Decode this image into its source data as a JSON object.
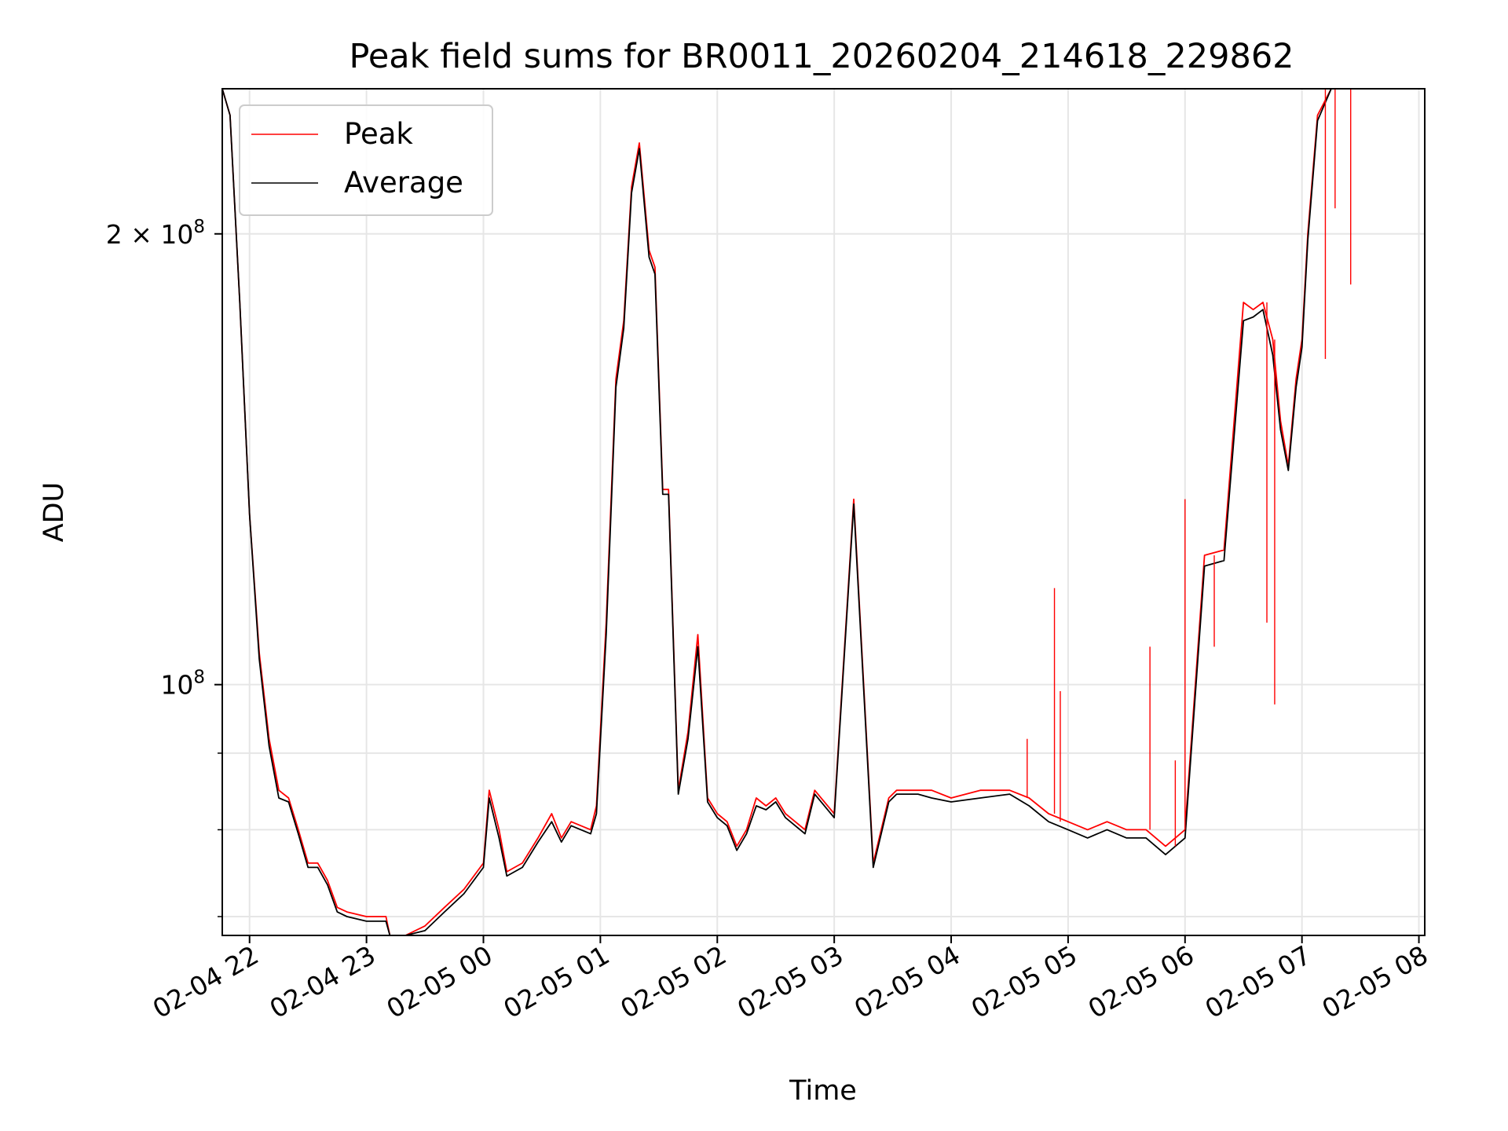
{
  "chart_data": {
    "type": "line",
    "title": "Peak field sums for BR0011_20260204_214618_229862",
    "xlabel": "Time",
    "ylabel": "ADU",
    "yscale": "log",
    "grid": true,
    "legend_position": "top-left",
    "xlim": [
      "02-04 21:46",
      "02-05 08:03"
    ],
    "ylim": [
      68000000,
      250000000
    ],
    "x_ticks": [
      "02-04 22",
      "02-04 23",
      "02-05 00",
      "02-05 01",
      "02-05 02",
      "02-05 03",
      "02-05 04",
      "02-05 05",
      "02-05 06",
      "02-05 07",
      "02-05 08"
    ],
    "y_ticks": [
      {
        "value": 100000000,
        "base": "10",
        "exp": "8",
        "coef": ""
      },
      {
        "value": 200000000,
        "base": "10",
        "exp": "8",
        "coef": "2 × "
      }
    ],
    "series": [
      {
        "name": "Peak",
        "color": "#ff0000",
        "x": [
          "02-04 21:46",
          "02-04 21:50",
          "02-04 21:55",
          "02-04 22:00",
          "02-04 22:05",
          "02-04 22:10",
          "02-04 22:15",
          "02-04 22:20",
          "02-04 22:25",
          "02-04 22:30",
          "02-04 22:35",
          "02-04 22:40",
          "02-04 22:45",
          "02-04 22:50",
          "02-04 23:00",
          "02-04 23:10",
          "02-04 23:12",
          "02-04 23:20",
          "02-04 23:30",
          "02-04 23:40",
          "02-04 23:50",
          "02-05 00:00",
          "02-05 00:03",
          "02-05 00:08",
          "02-05 00:12",
          "02-05 00:20",
          "02-05 00:28",
          "02-05 00:35",
          "02-05 00:40",
          "02-05 00:45",
          "02-05 00:55",
          "02-05 00:58",
          "02-05 01:03",
          "02-05 01:08",
          "02-05 01:12",
          "02-05 01:16",
          "02-05 01:20",
          "02-05 01:25",
          "02-05 01:28",
          "02-05 01:32",
          "02-05 01:35",
          "02-05 01:40",
          "02-05 01:45",
          "02-05 01:50",
          "02-05 01:55",
          "02-05 02:00",
          "02-05 02:05",
          "02-05 02:10",
          "02-05 02:15",
          "02-05 02:20",
          "02-05 02:25",
          "02-05 02:30",
          "02-05 02:35",
          "02-05 02:40",
          "02-05 02:45",
          "02-05 02:50",
          "02-05 03:00",
          "02-05 03:10",
          "02-05 03:20",
          "02-05 03:28",
          "02-05 03:32",
          "02-05 03:38",
          "02-05 03:43",
          "02-05 03:50",
          "02-05 04:00",
          "02-05 04:15",
          "02-05 04:30",
          "02-05 04:40",
          "02-05 04:50",
          "02-05 05:00",
          "02-05 05:10",
          "02-05 05:20",
          "02-05 05:30",
          "02-05 05:40",
          "02-05 05:50",
          "02-05 06:00",
          "02-05 06:10",
          "02-05 06:20",
          "02-05 06:30",
          "02-05 06:35",
          "02-05 06:40",
          "02-05 06:45",
          "02-05 06:49",
          "02-05 06:53",
          "02-05 06:57",
          "02-05 07:00",
          "02-05 07:03",
          "02-05 07:08",
          "02-05 07:15",
          "02-05 07:22",
          "02-05 07:30",
          "02-05 07:35",
          "02-05 07:40",
          "02-05 07:45",
          "02-05 07:50",
          "02-05 07:55",
          "02-05 08:00",
          "02-05 08:03"
        ],
        "values": [
          250000000,
          240000000,
          180000000,
          130000000,
          105000000,
          92000000,
          85000000,
          84000000,
          80000000,
          76000000,
          76000000,
          74000000,
          71000000,
          70500000,
          70000000,
          70000000,
          68000000,
          68000000,
          69000000,
          71000000,
          73000000,
          76000000,
          85000000,
          80000000,
          75000000,
          76000000,
          79000000,
          82000000,
          79000000,
          81000000,
          80000000,
          83000000,
          110000000,
          160000000,
          175000000,
          215000000,
          230000000,
          195000000,
          190000000,
          135000000,
          135000000,
          85000000,
          93000000,
          108000000,
          84000000,
          82000000,
          81000000,
          78000000,
          80000000,
          84000000,
          83000000,
          84000000,
          82000000,
          81000000,
          80000000,
          85000000,
          82000000,
          133000000,
          76000000,
          84000000,
          85000000,
          85000000,
          85000000,
          85000000,
          84000000,
          85000000,
          85000000,
          84000000,
          82000000,
          81000000,
          80000000,
          81000000,
          80000000,
          80000000,
          78000000,
          80000000,
          122000000,
          123000000,
          180000000,
          178000000,
          180000000,
          170000000,
          150000000,
          140000000,
          160000000,
          170000000,
          200000000,
          240000000,
          250000000,
          250000000,
          250000000,
          250000000,
          250000000,
          250000000,
          250000000,
          250000000,
          250000000,
          250000000
        ]
      },
      {
        "name": "Average",
        "color": "#000000",
        "x": [
          "02-04 21:46",
          "02-04 21:50",
          "02-04 21:55",
          "02-04 22:00",
          "02-04 22:05",
          "02-04 22:10",
          "02-04 22:15",
          "02-04 22:20",
          "02-04 22:25",
          "02-04 22:30",
          "02-04 22:35",
          "02-04 22:40",
          "02-04 22:45",
          "02-04 22:50",
          "02-04 23:00",
          "02-04 23:10",
          "02-04 23:12",
          "02-04 23:20",
          "02-04 23:30",
          "02-04 23:40",
          "02-04 23:50",
          "02-05 00:00",
          "02-05 00:03",
          "02-05 00:08",
          "02-05 00:12",
          "02-05 00:20",
          "02-05 00:28",
          "02-05 00:35",
          "02-05 00:40",
          "02-05 00:45",
          "02-05 00:55",
          "02-05 00:58",
          "02-05 01:03",
          "02-05 01:08",
          "02-05 01:12",
          "02-05 01:16",
          "02-05 01:20",
          "02-05 01:25",
          "02-05 01:28",
          "02-05 01:32",
          "02-05 01:35",
          "02-05 01:40",
          "02-05 01:45",
          "02-05 01:50",
          "02-05 01:55",
          "02-05 02:00",
          "02-05 02:05",
          "02-05 02:10",
          "02-05 02:15",
          "02-05 02:20",
          "02-05 02:25",
          "02-05 02:30",
          "02-05 02:35",
          "02-05 02:40",
          "02-05 02:45",
          "02-05 02:50",
          "02-05 03:00",
          "02-05 03:10",
          "02-05 03:20",
          "02-05 03:28",
          "02-05 03:32",
          "02-05 03:38",
          "02-05 03:43",
          "02-05 03:50",
          "02-05 04:00",
          "02-05 04:15",
          "02-05 04:30",
          "02-05 04:40",
          "02-05 04:50",
          "02-05 05:00",
          "02-05 05:10",
          "02-05 05:20",
          "02-05 05:30",
          "02-05 05:40",
          "02-05 05:50",
          "02-05 06:00",
          "02-05 06:10",
          "02-05 06:20",
          "02-05 06:30",
          "02-05 06:35",
          "02-05 06:40",
          "02-05 06:45",
          "02-05 06:49",
          "02-05 06:53",
          "02-05 06:57",
          "02-05 07:00",
          "02-05 07:03",
          "02-05 07:08",
          "02-05 07:15",
          "02-05 07:22",
          "02-05 07:30",
          "02-05 07:35",
          "02-05 07:40",
          "02-05 07:45",
          "02-05 07:50",
          "02-05 07:55",
          "02-05 08:00",
          "02-05 08:03"
        ],
        "values": [
          250000000,
          240000000,
          180000000,
          130000000,
          104000000,
          91000000,
          84000000,
          83500000,
          79500000,
          75500000,
          75500000,
          73500000,
          70500000,
          70000000,
          69500000,
          69500000,
          67800000,
          67800000,
          68500000,
          70500000,
          72500000,
          75500000,
          84000000,
          79000000,
          74500000,
          75500000,
          78500000,
          81000000,
          78500000,
          80500000,
          79500000,
          82000000,
          108000000,
          158000000,
          173000000,
          213000000,
          228000000,
          193000000,
          188000000,
          134000000,
          134000000,
          84500000,
          92000000,
          106000000,
          83500000,
          81500000,
          80500000,
          77500000,
          79500000,
          83000000,
          82500000,
          83500000,
          81500000,
          80500000,
          79500000,
          84500000,
          81500000,
          132000000,
          75500000,
          83500000,
          84500000,
          84500000,
          84500000,
          84000000,
          83500000,
          84000000,
          84500000,
          83000000,
          81000000,
          80000000,
          79000000,
          80000000,
          79000000,
          79000000,
          77000000,
          79000000,
          120000000,
          121000000,
          175000000,
          176000000,
          178000000,
          166000000,
          148000000,
          139000000,
          158000000,
          168000000,
          198000000,
          238000000,
          250000000,
          250000000,
          250000000,
          250000000,
          250000000,
          250000000,
          250000000,
          250000000,
          250000000,
          250000000
        ]
      }
    ],
    "spikes": [
      {
        "series": "Peak",
        "x": "02-05 04:39",
        "value": 92000000
      },
      {
        "series": "Peak",
        "x": "02-05 04:53",
        "value": 116000000
      },
      {
        "series": "Peak",
        "x": "02-05 04:56",
        "value": 99000000
      },
      {
        "series": "Peak",
        "x": "02-05 05:42",
        "value": 106000000
      },
      {
        "series": "Peak",
        "x": "02-05 05:55",
        "value": 89000000
      },
      {
        "series": "Peak",
        "x": "02-05 06:00",
        "value": 133000000
      },
      {
        "series": "Peak",
        "x": "02-05 06:15",
        "value": 106000000
      },
      {
        "series": "Peak",
        "x": "02-05 06:42",
        "value": 110000000
      },
      {
        "series": "Peak",
        "x": "02-05 06:46",
        "value": 97000000
      },
      {
        "series": "Peak",
        "x": "02-05 07:17",
        "value": 208000000
      },
      {
        "series": "Peak",
        "x": "02-05 07:12",
        "value": 165000000
      },
      {
        "series": "Peak",
        "x": "02-05 07:25",
        "value": 185000000
      }
    ]
  }
}
